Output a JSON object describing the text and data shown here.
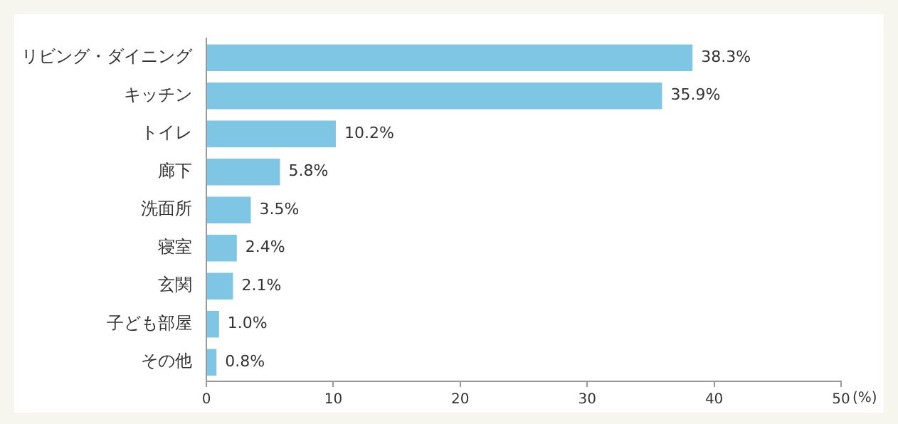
{
  "chart_data": {
    "type": "bar",
    "orientation": "horizontal",
    "categories": [
      "リビング・ダイニング",
      "キッチン",
      "トイレ",
      "廊下",
      "洗面所",
      "寝室",
      "玄関",
      "子ども部屋",
      "その他"
    ],
    "values": [
      38.3,
      35.9,
      10.2,
      5.8,
      3.5,
      2.4,
      2.1,
      1.0,
      0.8
    ],
    "value_labels": [
      "38.3%",
      "35.9%",
      "10.2%",
      "5.8%",
      "3.5%",
      "2.4%",
      "2.1%",
      "1.0%",
      "0.8%"
    ],
    "color": "#7fc6e4",
    "xlabel": "(%)",
    "xlim": [
      0,
      50
    ],
    "xticks": [
      0,
      10,
      20,
      30,
      40,
      50
    ],
    "grid": false,
    "legend": false
  }
}
